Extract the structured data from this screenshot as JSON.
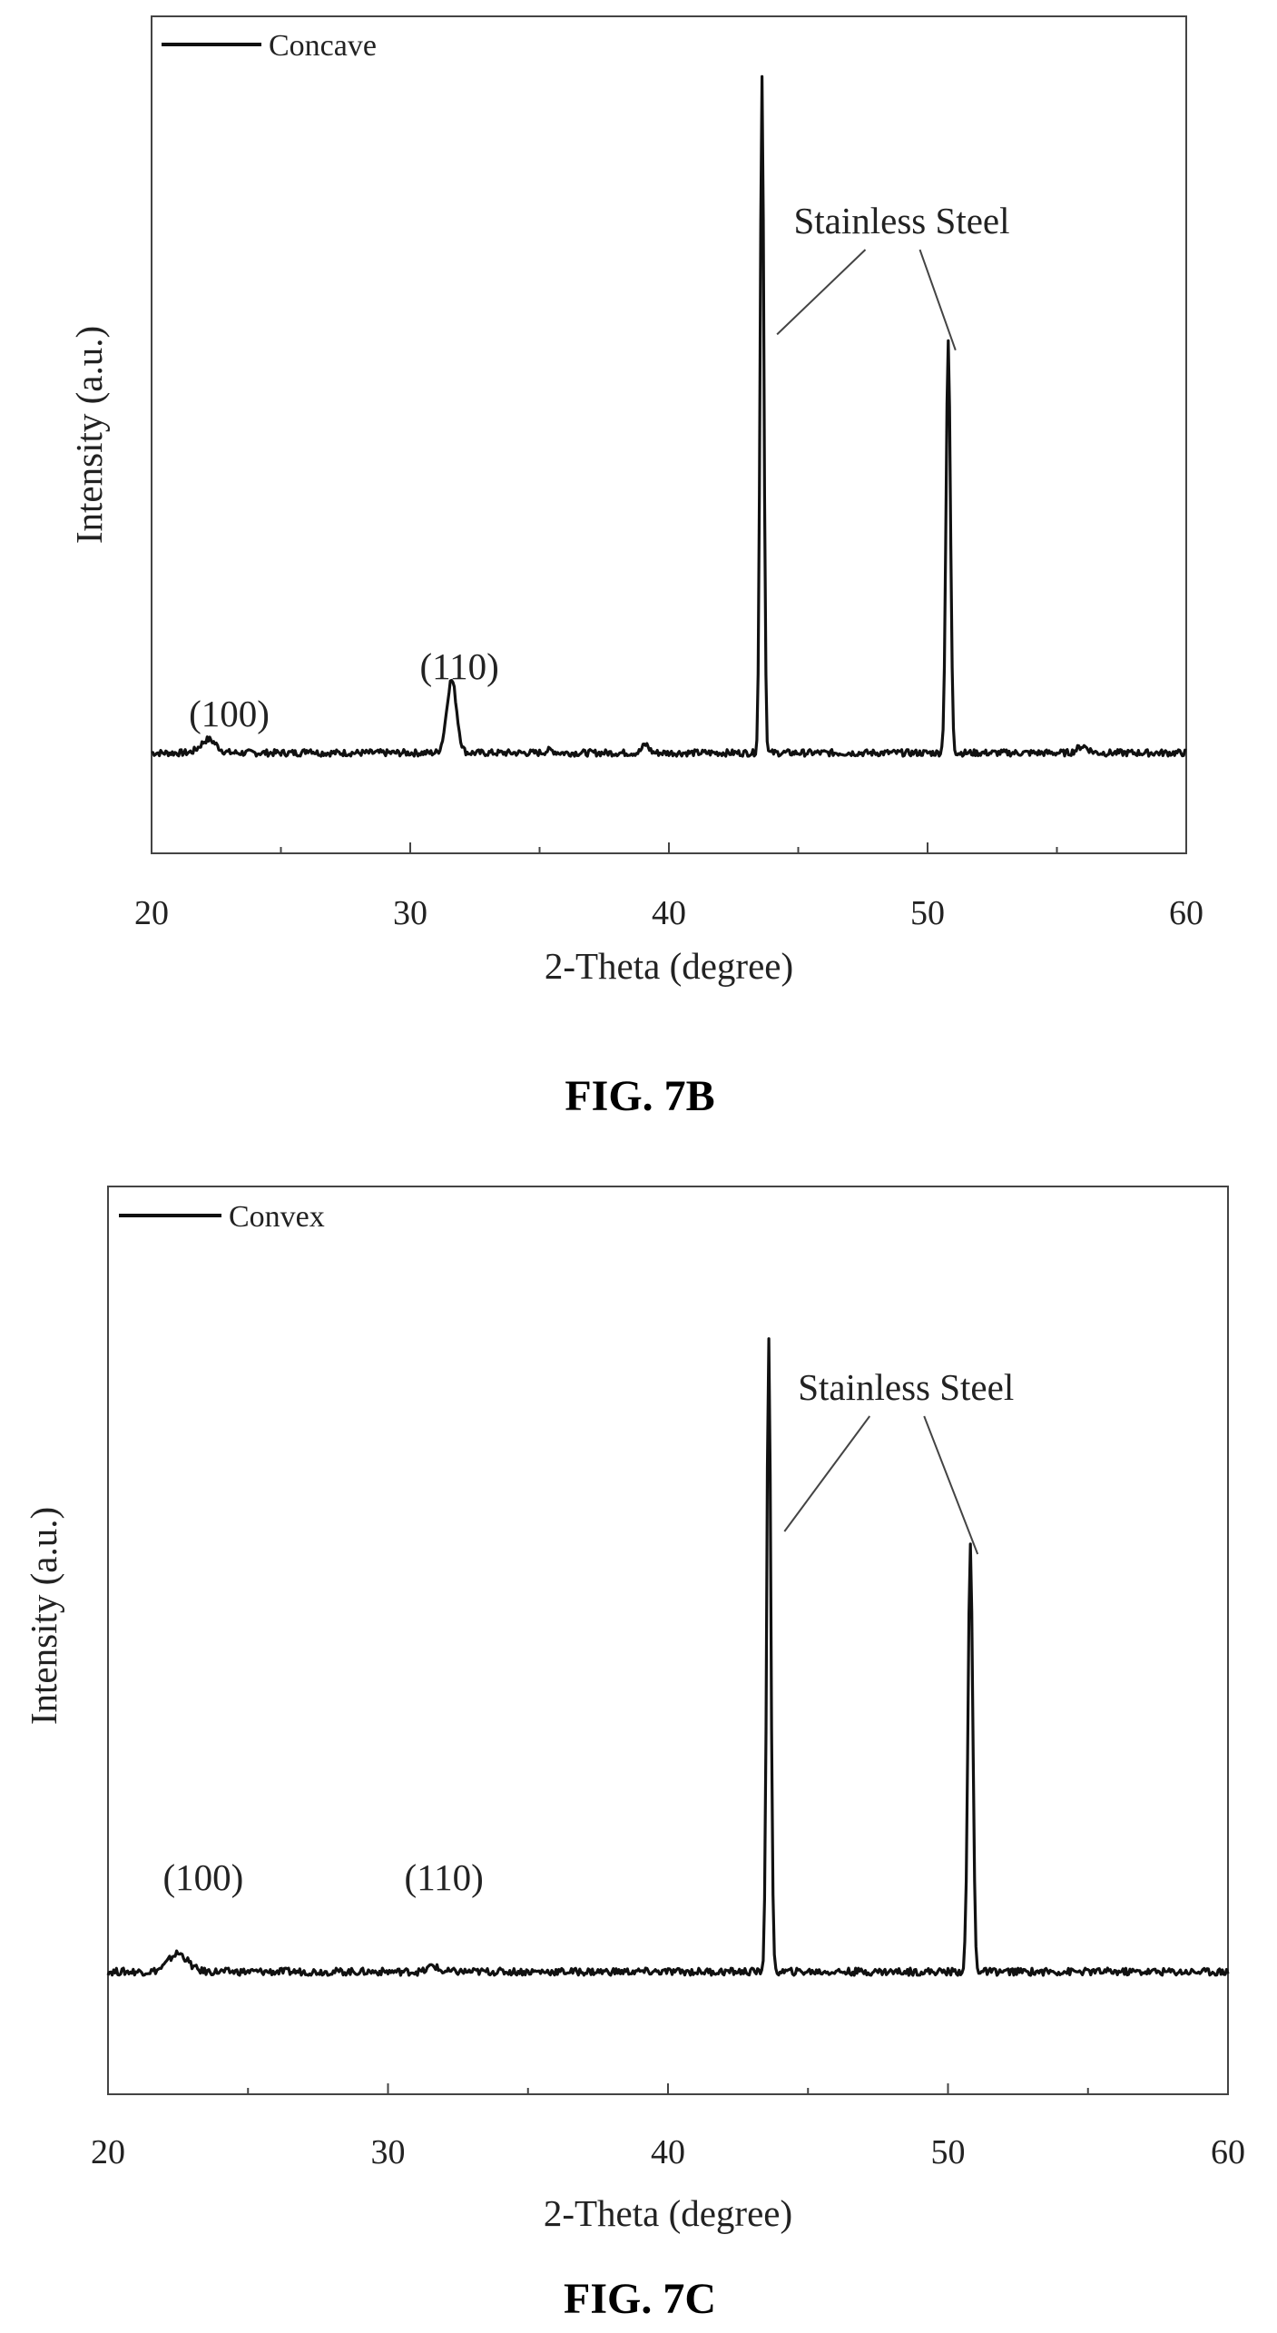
{
  "chart_data": [
    {
      "type": "line",
      "caption": "FIG. 7B",
      "xlabel": "2-Theta (degree)",
      "ylabel": "Intensity (a.u.)",
      "xlim": [
        20,
        60
      ],
      "ylim": [
        0,
        1
      ],
      "x_ticks": [
        20,
        30,
        40,
        50,
        60
      ],
      "y_ticks_labeled": false,
      "grid": false,
      "legend": {
        "position": "top-left",
        "entries": [
          "Concave"
        ]
      },
      "series": [
        {
          "name": "Concave",
          "color": "#111111",
          "peaks": [
            {
              "x": 22.2,
              "y": 0.136,
              "width": 0.7
            },
            {
              "x": 26.1,
              "y": 0.124,
              "width": 0.3
            },
            {
              "x": 31.6,
              "y": 0.207,
              "width": 0.45
            },
            {
              "x": 35.4,
              "y": 0.123,
              "width": 0.4
            },
            {
              "x": 39.1,
              "y": 0.13,
              "width": 0.3
            },
            {
              "x": 43.6,
              "y": 0.93,
              "width": 0.17
            },
            {
              "x": 50.8,
              "y": 0.612,
              "width": 0.2
            },
            {
              "x": 56.0,
              "y": 0.128,
              "width": 0.5
            }
          ],
          "baseline": 0.12,
          "noise": 0.004
        }
      ],
      "annotations": [
        {
          "text": "(100)",
          "x": 23.0,
          "y": 0.175
        },
        {
          "text": "(110)",
          "x": 31.9,
          "y": 0.26
        },
        {
          "text": "Stainless Steel",
          "x": 49.0,
          "y": 0.8,
          "points_to": [
            43.9,
            50.8
          ]
        }
      ]
    },
    {
      "type": "line",
      "caption": "FIG. 7C",
      "xlabel": "2-Theta (degree)",
      "ylabel": "Intensity (a.u.)",
      "xlim": [
        20,
        60
      ],
      "ylim": [
        0,
        1
      ],
      "x_ticks": [
        20,
        30,
        40,
        50,
        60
      ],
      "y_ticks_labeled": false,
      "grid": false,
      "legend": {
        "position": "top-left",
        "entries": [
          "Convex"
        ]
      },
      "series": [
        {
          "name": "Convex",
          "color": "#111111",
          "peaks": [
            {
              "x": 22.5,
              "y": 0.155,
              "width": 0.8
            },
            {
              "x": 31.6,
              "y": 0.142,
              "width": 0.35
            },
            {
              "x": 43.6,
              "y": 0.835,
              "width": 0.17
            },
            {
              "x": 50.8,
              "y": 0.605,
              "width": 0.2
            }
          ],
          "baseline": 0.135,
          "noise": 0.004
        }
      ],
      "annotations": [
        {
          "text": "(100)",
          "x": 23.4,
          "y": 0.21
        },
        {
          "text": "(110)",
          "x": 32.0,
          "y": 0.21
        },
        {
          "text": "Stainless Steel",
          "x": 48.5,
          "y": 0.78,
          "points_to": [
            43.9,
            50.8
          ]
        }
      ]
    }
  ]
}
